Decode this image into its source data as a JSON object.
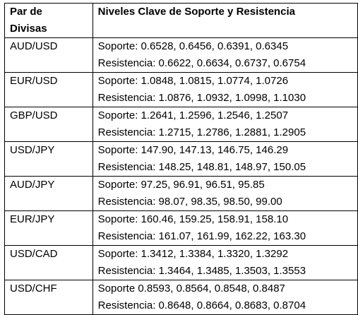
{
  "table": {
    "headers": {
      "pair_line1": "Par de",
      "pair_line2": "Divisas",
      "levels": "Niveles Clave de Soporte y Resistencia"
    },
    "rows": [
      {
        "pair": "AUD/USD",
        "support": "Soporte: 0.6528, 0.6456, 0.6391, 0.6345",
        "resistance": "Resistencia: 0.6622, 0.6634, 0.6737, 0.6754"
      },
      {
        "pair": "EUR/USD",
        "support": "Soporte: 1.0848, 1.0815, 1.0774, 1.0726",
        "resistance": "Resistencia: 1.0876, 1.0932, 1.0998, 1.1030"
      },
      {
        "pair": "GBP/USD",
        "support": "Soporte: 1.2641, 1.2596, 1.2546, 1.2507",
        "resistance": "Resistencia: 1.2715, 1.2786, 1.2881, 1.2905"
      },
      {
        "pair": "USD/JPY",
        "support": "Soporte: 147.90, 147.13, 146.75, 146.29",
        "resistance": "Resistencia: 148.25, 148.81, 148.97, 150.05"
      },
      {
        "pair": "AUD/JPY",
        "support": "Soporte: 97.25, 96.91, 96.51, 95.85",
        "resistance": "Resistencia: 98.07, 98.35, 98.50, 99.00"
      },
      {
        "pair": "EUR/JPY",
        "support": "Soporte: 160.46, 159.25, 158.91, 158.10",
        "resistance": "Resistencia: 161.07, 161.99, 162.22, 163.30"
      },
      {
        "pair": "USD/CAD",
        "support": "Soporte: 1.3412, 1.3384, 1.3320, 1.3292",
        "resistance": "Resistencia: 1.3464, 1.3485, 1.3503, 1.3553"
      },
      {
        "pair": "USD/CHF",
        "support": "Soporte 0.8593, 0.8564, 0.8548, 0.8487",
        "resistance": "Resistencia: 0.8648, 0.8664, 0.8683, 0.8704"
      }
    ]
  }
}
